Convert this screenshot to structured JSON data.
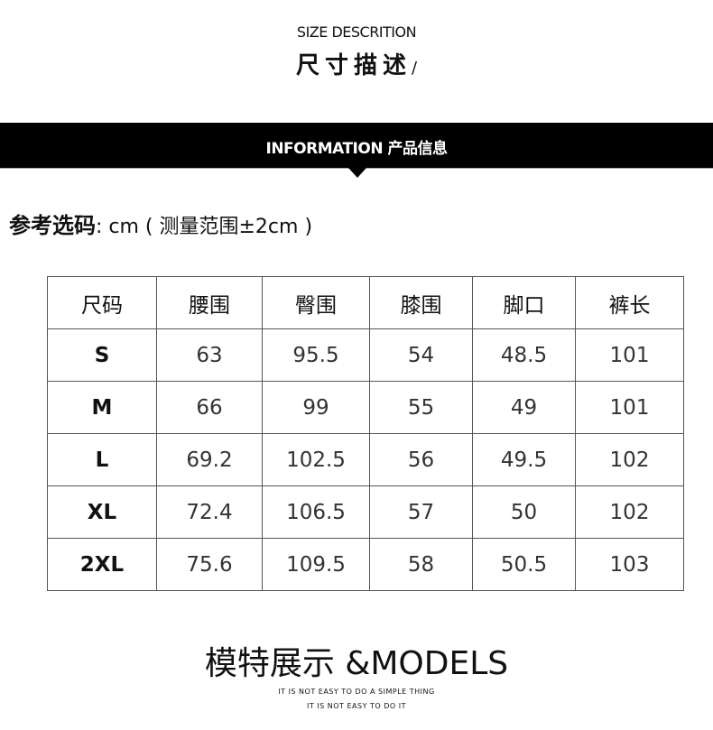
{
  "header": {
    "subtitle_en": "SIZE DESCRITION",
    "title_cn": "尺寸描述",
    "slash": "/"
  },
  "band": {
    "text": "INFORMATION 产品信息",
    "color": "#000000"
  },
  "reference": {
    "label": "参考选码",
    "unit_text": ": cm ( 测量范围±2cm )"
  },
  "size_table": {
    "headers": [
      "尺码",
      "腰围",
      "臀围",
      "膝围",
      "脚口",
      "裤长"
    ],
    "rows": [
      [
        "S",
        "63",
        "95.5",
        "54",
        "48.5",
        "101"
      ],
      [
        "M",
        "66",
        "99",
        "55",
        "49",
        "101"
      ],
      [
        "L",
        "69.2",
        "102.5",
        "56",
        "49.5",
        "102"
      ],
      [
        "XL",
        "72.4",
        "106.5",
        "57",
        "50",
        "102"
      ],
      [
        "2XL",
        "75.6",
        "109.5",
        "58",
        "50.5",
        "103"
      ]
    ]
  },
  "footer": {
    "models_title": "模特展示 &MODELS",
    "tagline_1": "IT IS NOT EASY TO DO A SIMPLE THING",
    "tagline_2": "IT IS NOT EASY TO DO IT"
  }
}
